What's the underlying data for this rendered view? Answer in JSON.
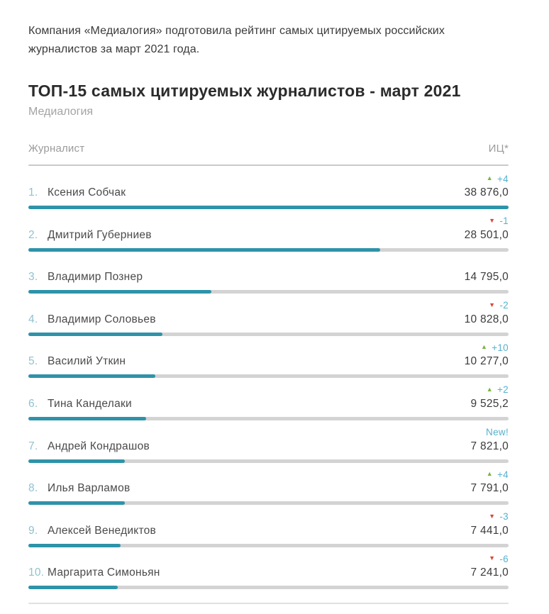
{
  "intro": "Компания «Медиалогия» подготовила рейтинг самых цитируемых российских журналистов за март 2021 года.",
  "header": {
    "title": "ТОП-15 самых цитируемых журналистов - март 2021",
    "source": "Медиалогия"
  },
  "columns": {
    "journalist": "Журналист",
    "index": "ИЦ*"
  },
  "colors": {
    "bar_fill": "#2e93a9",
    "bar_track": "#d3d3d3",
    "rank_text": "#90c2d0",
    "delta_text": "#56b2ce",
    "arrow_up": "#79b43f",
    "arrow_down": "#d8473a",
    "muted_text": "#9b9b9b",
    "dark_text": "#2b2b2b"
  },
  "chart_data": {
    "type": "bar",
    "orientation": "horizontal",
    "title": "ТОП-15 самых цитируемых журналистов - март 2021",
    "subtitle": "Медиалогия",
    "xlabel": "",
    "ylabel": "ИЦ*",
    "xlim": [
      0,
      38876
    ],
    "grid": false,
    "legend": "none",
    "ranks": [
      "1.",
      "2.",
      "3.",
      "4.",
      "5.",
      "6.",
      "7.",
      "8.",
      "9.",
      "10."
    ],
    "categories": [
      "Ксения Собчак",
      "Дмитрий Губерниев",
      "Владимир Познер",
      "Владимир Соловьев",
      "Василий Уткин",
      "Тина Канделаки",
      "Андрей Кондрашов",
      "Илья Варламов",
      "Алексей Венедиктов",
      "Маргарита Симоньян"
    ],
    "values": [
      38876.0,
      28501.0,
      14795.0,
      10828.0,
      10277.0,
      9525.2,
      7821.0,
      7791.0,
      7441.0,
      7241.0
    ],
    "value_labels": [
      "38 876,0",
      "28 501,0",
      "14 795,0",
      "10 828,0",
      "10 277,0",
      "9 525,2",
      "7 821,0",
      "7 791,0",
      "7 441,0",
      "7 241,0"
    ],
    "deltas": [
      {
        "dir": "up",
        "label": "+4"
      },
      {
        "dir": "down",
        "label": "-1"
      },
      null,
      {
        "dir": "down",
        "label": "-2"
      },
      {
        "dir": "up",
        "label": "+10"
      },
      {
        "dir": "up",
        "label": "+2"
      },
      {
        "dir": "new",
        "label": "New!"
      },
      {
        "dir": "up",
        "label": "+4"
      },
      {
        "dir": "down",
        "label": "-3"
      },
      {
        "dir": "down",
        "label": "-6"
      }
    ]
  }
}
